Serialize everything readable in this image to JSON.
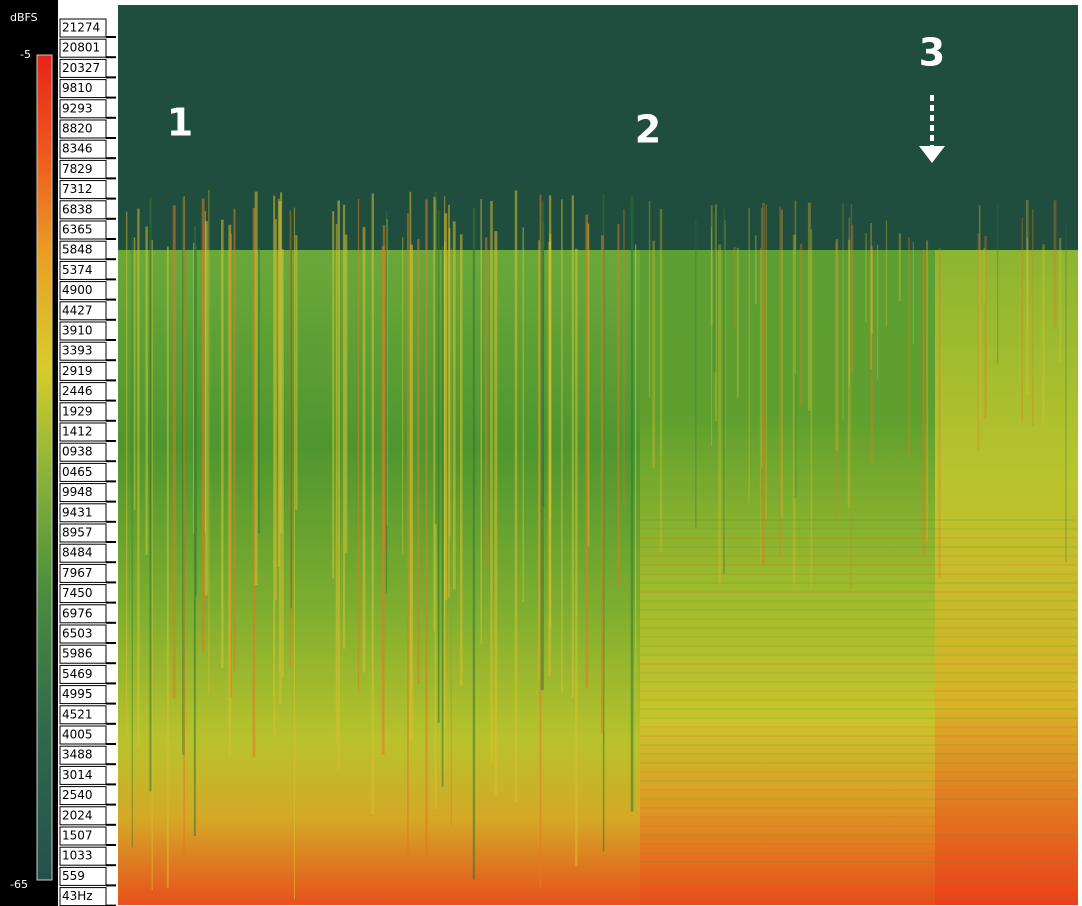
{
  "scale": {
    "unit": "dBFS",
    "max": "-5",
    "min": "-65"
  },
  "frequency_labels": [
    "21274",
    "20801",
    "20327",
    "9810",
    "9293",
    "8820",
    "8346",
    "7829",
    "7312",
    "6838",
    "6365",
    "5848",
    "5374",
    "4900",
    "4427",
    "3910",
    "3393",
    "2919",
    "2446",
    "1929",
    "1412",
    "0938",
    "0465",
    "9948",
    "9431",
    "8957",
    "8484",
    "7967",
    "7450",
    "6976",
    "6503",
    "5986",
    "5469",
    "4995",
    "4521",
    "4005",
    "3488",
    "3014",
    "2540",
    "2024",
    "1507",
    "1033",
    "559",
    "43Hz"
  ],
  "annotations": [
    "1",
    "2",
    "3"
  ]
}
